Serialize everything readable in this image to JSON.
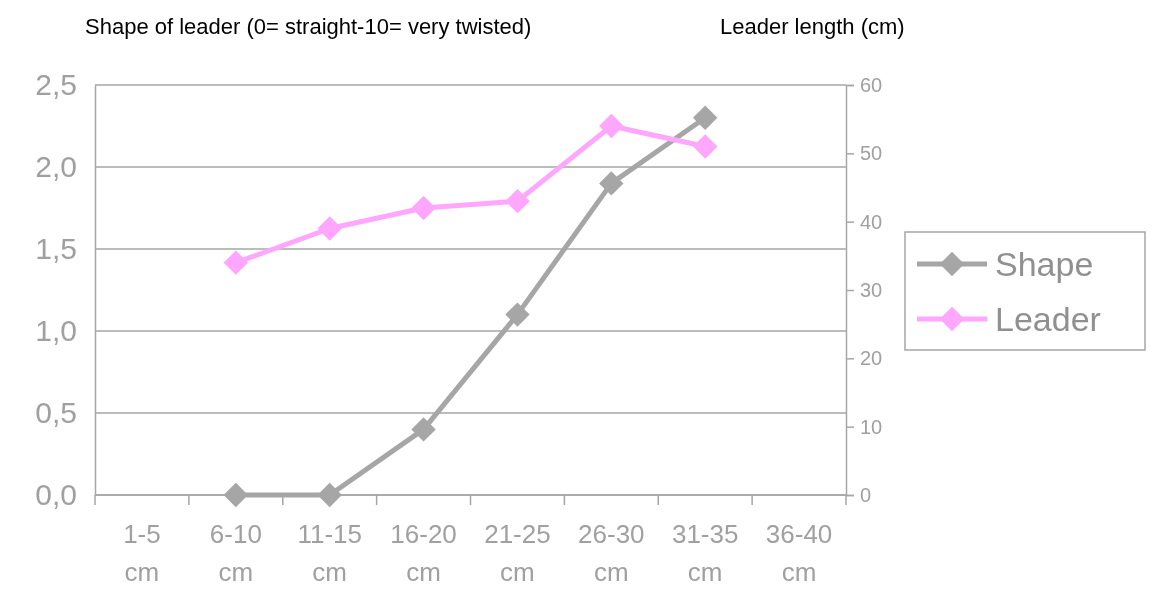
{
  "chart_data": {
    "type": "line",
    "ylabel": "Shape of leader (0= straight-10= very twisted)",
    "y2label": "Leader length (cm)",
    "categories": [
      "1-5 cm",
      "6-10 cm",
      "11-15 cm",
      "16-20 cm",
      "21-25 cm",
      "26-30 cm",
      "31-35 cm",
      "36-40 cm"
    ],
    "series": [
      {
        "name": "Shape",
        "color": "#a6a6a6",
        "values": [
          null,
          0,
          0,
          0.4,
          1.1,
          1.9,
          2.3,
          null
        ]
      },
      {
        "name": "Leader",
        "color": "#ffa6ff",
        "axis": "y2",
        "values": [
          null,
          34,
          39,
          42,
          43,
          54,
          51,
          null
        ]
      }
    ],
    "ylim": [
      0,
      2.5
    ],
    "yticks": [
      {
        "value": 0,
        "label": "0,0"
      },
      {
        "value": 0.5,
        "label": "0,5"
      },
      {
        "value": 1,
        "label": "1,0"
      },
      {
        "value": 1.5,
        "label": "1,5"
      },
      {
        "value": 2,
        "label": "2,0"
      },
      {
        "value": 2.5,
        "label": "2,5"
      }
    ],
    "y2lim": [
      0,
      60
    ],
    "y2ticks": [
      0,
      10,
      20,
      30,
      40,
      50,
      60
    ],
    "grid": "y",
    "legend": "right",
    "marker": "diamond",
    "line_style": "solid"
  }
}
